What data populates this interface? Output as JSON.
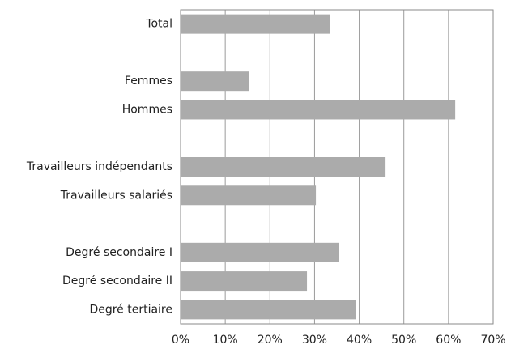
{
  "chart_data": {
    "type": "bar",
    "orientation": "horizontal",
    "categories": [
      "Total",
      null,
      "Femmes",
      "Hommes",
      null,
      "Travailleurs indépendants",
      "Travailleurs salariés",
      null,
      "Degré secondaire I",
      "Degré secondaire II",
      "Degré tertiaire"
    ],
    "values": [
      33.4,
      null,
      15.4,
      61.5,
      null,
      45.9,
      30.3,
      null,
      35.4,
      28.3,
      39.2
    ],
    "color": "#ababab",
    "xlim": [
      0,
      70
    ],
    "xticks": [
      {
        "value": 0,
        "label": "0%"
      },
      {
        "value": 10,
        "label": "10%"
      },
      {
        "value": 20,
        "label": "20%"
      },
      {
        "value": 30,
        "label": "30%"
      },
      {
        "value": 40,
        "label": "40%"
      },
      {
        "value": 50,
        "label": "50%"
      },
      {
        "value": 60,
        "label": "60%"
      },
      {
        "value": 70,
        "label": "70%"
      }
    ],
    "grid": true
  }
}
